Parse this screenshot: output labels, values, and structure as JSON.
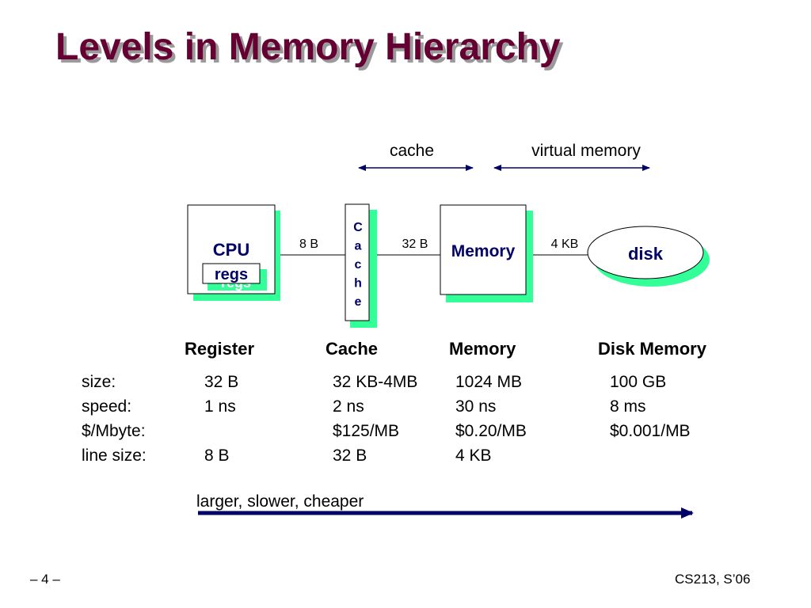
{
  "title": "Levels in Memory Hierarchy",
  "diagram": {
    "range_labels": {
      "cache": "cache",
      "virtual_memory": "virtual memory"
    },
    "cpu": {
      "label": "CPU",
      "regs": "regs",
      "regs_shadow": "regs"
    },
    "cache_letters": [
      "C",
      "a",
      "c",
      "h",
      "e"
    ],
    "memory": "Memory",
    "disk": "disk",
    "links": {
      "cpu_cache": "8 B",
      "cache_memory": "32 B",
      "memory_disk": "4 KB"
    },
    "colors": {
      "shadow": "#33ff99",
      "title": "#660033",
      "arrow": "#000066",
      "range_arrow": "#000066"
    }
  },
  "table": {
    "headers": [
      "Register",
      "Cache",
      "Memory",
      "Disk Memory"
    ],
    "rows": [
      {
        "label": "size:",
        "values": [
          "32 B",
          "32 KB-4MB",
          "1024 MB",
          "100 GB"
        ]
      },
      {
        "label": "speed:",
        "values": [
          "1 ns",
          "2 ns",
          "30 ns",
          "8 ms"
        ]
      },
      {
        "label": "$/Mbyte:",
        "values": [
          "",
          "$125/MB",
          "$0.20/MB",
          "$0.001/MB"
        ]
      },
      {
        "label": "line size:",
        "values": [
          "8 B",
          "32 B",
          "4  KB",
          ""
        ]
      }
    ]
  },
  "trend": {
    "label": "larger, slower, cheaper"
  },
  "footer": {
    "page": "– 4 –",
    "course": "CS213, S’06"
  }
}
